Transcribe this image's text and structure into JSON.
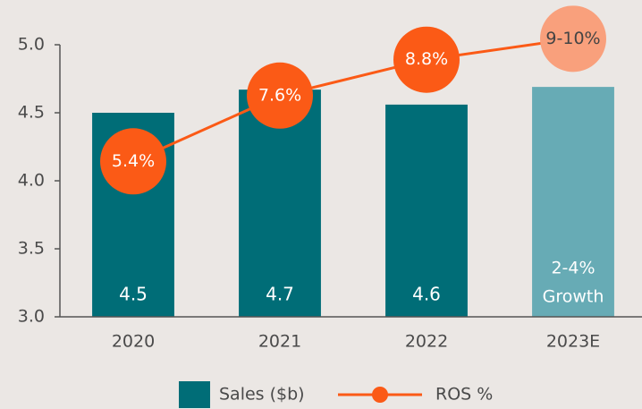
{
  "chart_data": {
    "type": "bar_line",
    "categories": [
      "2020",
      "2021",
      "2022",
      "2023E"
    ],
    "series": [
      {
        "name": "Sales ($b)",
        "type": "bar",
        "color": "#006d77",
        "colors": [
          "#006d77",
          "#006d77",
          "#006d77",
          "#67abb5"
        ],
        "values": [
          4.5,
          4.67,
          4.56,
          4.69
        ],
        "value_labels": [
          "4.5",
          "4.7",
          "4.6",
          null
        ]
      },
      {
        "name": "ROS %",
        "type": "line",
        "axis": "y2",
        "color": "#fb5a16",
        "point_colors": [
          "#fb5a16",
          "#fb5a16",
          "#fb5a16",
          "#f9a07c"
        ],
        "values": [
          5.4,
          7.6,
          8.8,
          9.5
        ],
        "value_labels": [
          "5.4%",
          "7.6%",
          "8.8%",
          "9-10%"
        ]
      }
    ],
    "annotation": {
      "category": 3,
      "lines": [
        "2-4%",
        "Growth"
      ]
    },
    "ylim": [
      3.0,
      5.0
    ],
    "yticks": [
      {
        "value": 3,
        "label": "3.0"
      },
      3.5,
      {
        "value": 4,
        "label": "4.0"
      },
      4.5,
      {
        "value": 5,
        "label": "5.0"
      }
    ],
    "y2lim": [
      0.2,
      9.3
    ],
    "legend": "bottom"
  }
}
